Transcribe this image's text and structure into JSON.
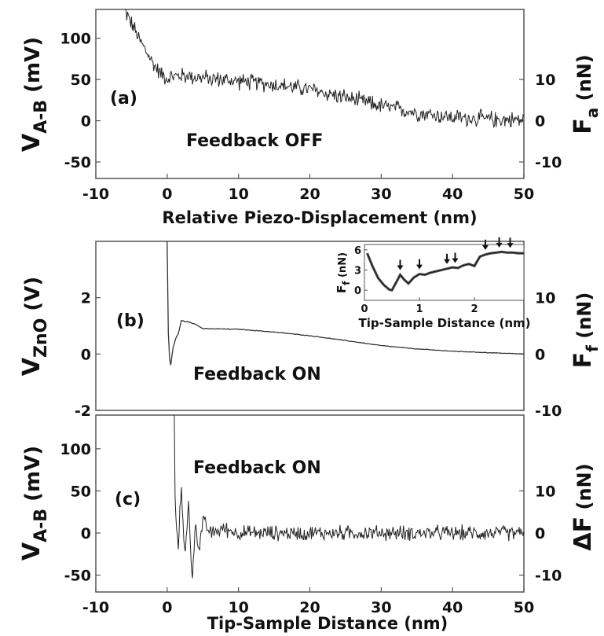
{
  "chart_data": [
    {
      "id": "a",
      "type": "line",
      "panel_label": "(a)",
      "annotation": "Feedback OFF",
      "xlabel": "Relative Piezo-Displacement (nm)",
      "ylabel_main": "V",
      "ylabel_sub": "A-B",
      "ylabel_unit": " (mV)",
      "y2label_main": "F",
      "y2label_sub": "a",
      "y2label_unit": " (nN)",
      "xlim": [
        -10,
        50
      ],
      "ylim": [
        -70,
        135
      ],
      "xticks": [
        -10,
        0,
        10,
        20,
        30,
        40,
        50
      ],
      "xtick_labels": [
        "-10",
        "0",
        "10",
        "20",
        "30",
        "40",
        "50"
      ],
      "yticks": [
        -50,
        0,
        50,
        100
      ],
      "ytick_labels": [
        "-50",
        "0",
        "50",
        "100"
      ],
      "y2ticks": [
        -10,
        0,
        10
      ],
      "y2tick_labels": [
        "-10",
        "0",
        "10"
      ],
      "y2_map": {
        "y_at_0": 0,
        "y_per_unit": 5.0
      },
      "series": [
        {
          "x": [
            -6,
            -5,
            -4,
            -3,
            -2,
            -1,
            0,
            2,
            5,
            10,
            15,
            20,
            25,
            30,
            35,
            40,
            45,
            50
          ],
          "y": [
            135,
            118,
            100,
            85,
            70,
            58,
            52,
            55,
            52,
            48,
            44,
            38,
            28,
            18,
            10,
            4,
            2,
            1
          ],
          "noise": 9
        }
      ]
    },
    {
      "id": "b",
      "type": "line",
      "panel_label": "(b)",
      "annotation": "Feedback ON",
      "xlabel": "",
      "ylabel_main": "V",
      "ylabel_sub": "ZnO",
      "ylabel_unit": " (V)",
      "y2label_main": "F",
      "y2label_sub": "f",
      "y2label_unit": " (nN)",
      "xlim": [
        -10,
        50
      ],
      "ylim": [
        -2.0,
        4.0
      ],
      "yticks": [
        -2,
        0,
        2
      ],
      "ytick_labels": [
        "-2",
        "0",
        "2"
      ],
      "y2ticks": [
        -10,
        0,
        10
      ],
      "y2tick_labels": [
        "-10",
        "0",
        "10"
      ],
      "y2_map": {
        "y_at_0": 0,
        "y_per_unit": 0.2
      },
      "series": [
        {
          "x": [
            0,
            0.05,
            0.3,
            0.5,
            0.8,
            1.2,
            1.6,
            2.0,
            2.5,
            3,
            4,
            5,
            10,
            15,
            20,
            25,
            30,
            35,
            40,
            45,
            50
          ],
          "y": [
            4.0,
            1.5,
            -0.1,
            -0.4,
            0.2,
            0.55,
            0.75,
            1.2,
            1.15,
            1.15,
            1.05,
            0.9,
            0.88,
            0.78,
            0.65,
            0.48,
            0.3,
            0.18,
            0.1,
            0.05,
            0.0
          ],
          "noise": 0.01
        }
      ],
      "inset": {
        "xlabel": "Tip-Sample Distance (nm)",
        "ylabel_main": "F",
        "ylabel_sub": "f",
        "ylabel_unit": " (nN)",
        "xlim": [
          0,
          2.9
        ],
        "ylim": [
          -1.5,
          6.8
        ],
        "xticks": [
          0,
          1,
          2
        ],
        "xtick_labels": [
          "0",
          "1",
          "2"
        ],
        "yticks": [
          0,
          3,
          6
        ],
        "ytick_labels": [
          "0",
          "3",
          "6"
        ],
        "x": [
          0.05,
          0.15,
          0.25,
          0.35,
          0.45,
          0.5,
          0.58,
          0.65,
          0.72,
          0.8,
          0.9,
          1.0,
          1.1,
          1.2,
          1.3,
          1.4,
          1.5,
          1.6,
          1.7,
          1.8,
          1.9,
          2.0,
          2.1,
          2.2,
          2.3,
          2.4,
          2.5,
          2.6,
          2.7,
          2.8,
          2.9
        ],
        "y": [
          5.5,
          3.5,
          1.8,
          0.8,
          0.1,
          0.0,
          1.2,
          2.3,
          1.6,
          1.0,
          1.9,
          2.4,
          2.3,
          2.6,
          2.8,
          3.0,
          3.2,
          3.4,
          3.3,
          3.7,
          3.9,
          3.6,
          5.0,
          5.3,
          5.5,
          5.6,
          5.7,
          5.6,
          5.6,
          5.5,
          5.5
        ],
        "arrows_x": [
          0.65,
          1.0,
          1.5,
          1.65,
          2.2,
          2.45,
          2.65
        ]
      }
    },
    {
      "id": "c",
      "type": "line",
      "panel_label": "(c)",
      "annotation": "Feedback ON",
      "xlabel": "Tip-Sample Distance (nm)",
      "ylabel_main": "V",
      "ylabel_sub": "A-B",
      "ylabel_unit": " (mV)",
      "y2label_main": "ΔF",
      "y2label_sub": "",
      "y2label_unit": " (nN)",
      "xlim": [
        -10,
        50
      ],
      "ylim": [
        -70,
        140
      ],
      "xticks": [
        -10,
        0,
        10,
        20,
        30,
        40,
        50
      ],
      "xtick_labels": [
        "-10",
        "0",
        "10",
        "20",
        "30",
        "40",
        "50"
      ],
      "yticks": [
        -50,
        0,
        50,
        100
      ],
      "ytick_labels": [
        "-50",
        "0",
        "50",
        "100"
      ],
      "y2ticks": [
        -10,
        0,
        10
      ],
      "y2tick_labels": [
        "-10",
        "0",
        "10"
      ],
      "y2_map": {
        "y_at_0": 0,
        "y_per_unit": 5.0
      },
      "series": [
        {
          "x": [
            1.0,
            1.1,
            1.5,
            2,
            2.5,
            3,
            3.5,
            4,
            4.5,
            5,
            6,
            8,
            10,
            20,
            30,
            40,
            50
          ],
          "y": [
            140,
            40,
            -20,
            55,
            -30,
            35,
            -55,
            10,
            -20,
            15,
            0,
            5,
            0,
            0,
            0,
            0,
            0
          ],
          "noise": 8
        }
      ]
    }
  ]
}
